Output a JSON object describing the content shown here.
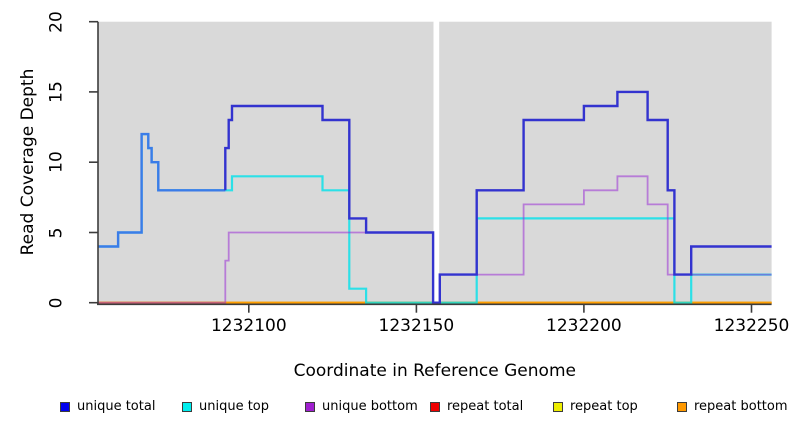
{
  "chart_data": {
    "type": "line",
    "step": true,
    "x_label": "Coordinate in Reference Genome",
    "y_label": "Read Coverage Depth",
    "x_range": [
      1232055,
      1232256
    ],
    "y_range": [
      0,
      20
    ],
    "grid": false,
    "panel_bg": "#d9d9d9",
    "gap_region": {
      "from": 1232155.1,
      "to": 1232156.8,
      "color": "#ffffff"
    },
    "x_ticks": [
      {
        "value": 1232100,
        "label": "1232100"
      },
      {
        "value": 1232150,
        "label": "1232150"
      },
      {
        "value": 1232200,
        "label": "1232200"
      },
      {
        "value": 1232250,
        "label": "1232250"
      }
    ],
    "y_ticks": [
      {
        "value": 0,
        "label": "0"
      },
      {
        "value": 5,
        "label": "5"
      },
      {
        "value": 10,
        "label": "10"
      },
      {
        "value": 15,
        "label": "15"
      },
      {
        "value": 20,
        "label": "20"
      }
    ],
    "legend_position": "bottom",
    "draw_order": [
      3,
      4,
      5,
      1,
      2,
      0
    ],
    "series": [
      {
        "name": "unique total",
        "legend_color": "#0000ee",
        "line_color": "#3333cf",
        "overlap_with_top_color": "#3b7ce8",
        "opacity": 1,
        "width": 2.4,
        "end_x": 1232256,
        "points": [
          [
            1232055,
            4
          ],
          [
            1232061,
            5
          ],
          [
            1232068,
            12
          ],
          [
            1232070,
            11
          ],
          [
            1232071,
            10
          ],
          [
            1232073,
            8
          ],
          [
            1232093,
            11
          ],
          [
            1232094,
            13
          ],
          [
            1232095,
            14
          ],
          [
            1232122,
            13
          ],
          [
            1232130,
            6
          ],
          [
            1232135,
            5
          ],
          [
            1232155,
            0
          ],
          [
            1232157,
            2
          ],
          [
            1232168,
            8
          ],
          [
            1232182,
            13
          ],
          [
            1232200,
            14
          ],
          [
            1232210,
            15
          ],
          [
            1232219,
            13
          ],
          [
            1232225,
            8
          ],
          [
            1232227,
            2
          ],
          [
            1232232,
            4
          ]
        ]
      },
      {
        "name": "unique top",
        "legend_color": "#00eeee",
        "line_color": "#00e1ea",
        "opacity": 0.8,
        "width": 2.2,
        "end_x": 1232256,
        "points": [
          [
            1232055,
            4
          ],
          [
            1232061,
            5
          ],
          [
            1232068,
            12
          ],
          [
            1232070,
            11
          ],
          [
            1232071,
            10
          ],
          [
            1232073,
            8
          ],
          [
            1232095,
            9
          ],
          [
            1232122,
            8
          ],
          [
            1232130,
            1
          ],
          [
            1232135,
            0
          ],
          [
            1232168,
            6
          ],
          [
            1232227,
            0
          ],
          [
            1232232,
            2
          ]
        ]
      },
      {
        "name": "unique bottom",
        "legend_color": "#a020d0",
        "line_color": "#9a2fd6",
        "opacity": 0.55,
        "width": 1.8,
        "end_x": 1232256,
        "points": [
          [
            1232055,
            0
          ],
          [
            1232093,
            3
          ],
          [
            1232094,
            5
          ],
          [
            1232155,
            0
          ],
          [
            1232157,
            2
          ],
          [
            1232182,
            7
          ],
          [
            1232200,
            8
          ],
          [
            1232210,
            9
          ],
          [
            1232219,
            7
          ],
          [
            1232225,
            2
          ]
        ]
      },
      {
        "name": "repeat total",
        "legend_color": "#ee0000",
        "line_color": "#ee0000",
        "opacity": 1,
        "width": 2,
        "end_x": 1232256,
        "points": [
          [
            1232055,
            0
          ]
        ]
      },
      {
        "name": "repeat top",
        "legend_color": "#eeee00",
        "line_color": "#eeee00",
        "opacity": 1,
        "width": 2,
        "end_x": 1232256,
        "points": [
          [
            1232055,
            0
          ]
        ]
      },
      {
        "name": "repeat bottom",
        "legend_color": "#ff9900",
        "line_color": "#ff9e00",
        "opacity": 1,
        "width": 2,
        "end_x": 1232256,
        "points": [
          [
            1232055,
            0
          ]
        ]
      }
    ]
  }
}
